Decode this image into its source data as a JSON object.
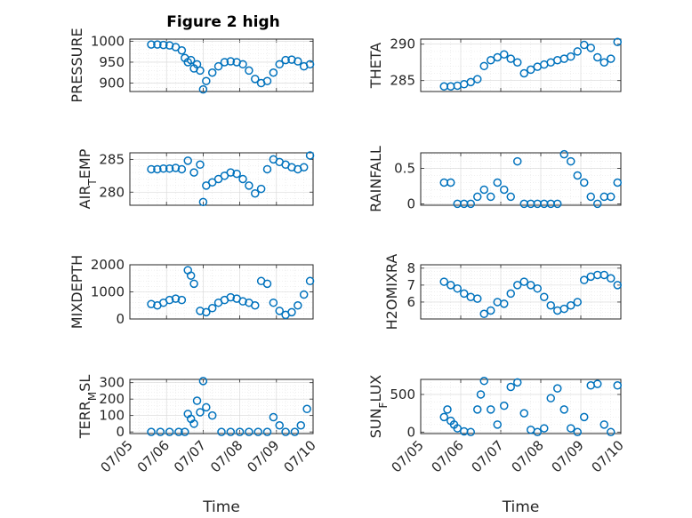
{
  "figure": {
    "title": "Figure 2 high"
  },
  "colors": {
    "marker": "#0072BD",
    "axis": "#262626",
    "grid": "#d6d6d6"
  },
  "chart_data": [
    {
      "type": "scatter",
      "ylabel": "PRESSURE",
      "ylabel_sub": "",
      "ylabel_tail": "",
      "xlabel": "",
      "ylim": [
        880,
        1005
      ],
      "yticks": [
        900,
        950,
        1000
      ],
      "grid": true,
      "x": [
        "07/05 14:00",
        "07/05 18:00",
        "07/05 22:00",
        "07/06 02:00",
        "07/06 06:00",
        "07/06 10:00",
        "07/06 12:00",
        "07/06 14:00",
        "07/06 16:00",
        "07/06 18:00",
        "07/06 20:00",
        "07/06 22:00",
        "07/07 00:00",
        "07/07 02:00",
        "07/07 06:00",
        "07/07 10:00",
        "07/07 14:00",
        "07/07 18:00",
        "07/07 22:00",
        "07/08 02:00",
        "07/08 06:00",
        "07/08 10:00",
        "07/08 14:00",
        "07/08 18:00",
        "07/08 22:00",
        "07/09 02:00",
        "07/09 06:00",
        "07/09 10:00",
        "07/09 14:00",
        "07/09 18:00",
        "07/09 22:00"
      ],
      "y": [
        992,
        992,
        991,
        990,
        986,
        978,
        960,
        950,
        955,
        935,
        945,
        930,
        885,
        905,
        925,
        940,
        950,
        952,
        950,
        945,
        930,
        910,
        900,
        905,
        925,
        945,
        955,
        956,
        952,
        940,
        945
      ]
    },
    {
      "type": "scatter",
      "ylabel": "THETA",
      "ylabel_sub": "",
      "ylabel_tail": "",
      "xlabel": "",
      "ylim": [
        283.5,
        290.7
      ],
      "yticks": [
        285,
        290
      ],
      "grid": true,
      "x": [
        "07/05 14:00",
        "07/05 18:00",
        "07/05 22:00",
        "07/06 02:00",
        "07/06 06:00",
        "07/06 10:00",
        "07/06 14:00",
        "07/06 18:00",
        "07/06 22:00",
        "07/07 02:00",
        "07/07 06:00",
        "07/07 10:00",
        "07/07 14:00",
        "07/07 18:00",
        "07/07 22:00",
        "07/08 02:00",
        "07/08 06:00",
        "07/08 10:00",
        "07/08 14:00",
        "07/08 18:00",
        "07/08 22:00",
        "07/09 02:00",
        "07/09 06:00",
        "07/09 10:00",
        "07/09 14:00",
        "07/09 18:00",
        "07/09 22:00"
      ],
      "y": [
        284.2,
        284.2,
        284.3,
        284.5,
        284.8,
        285.2,
        287.0,
        287.8,
        288.2,
        288.6,
        288.0,
        287.5,
        286.0,
        286.5,
        286.9,
        287.2,
        287.5,
        287.8,
        288.0,
        288.3,
        289.0,
        289.9,
        289.5,
        288.2,
        287.5,
        288.0,
        290.3
      ]
    },
    {
      "type": "scatter",
      "ylabel": "AIR",
      "ylabel_sub": "T",
      "ylabel_tail": "EMP",
      "xlabel": "",
      "ylim": [
        278,
        286
      ],
      "yticks": [
        280,
        285
      ],
      "grid": true,
      "x": [
        "07/05 14:00",
        "07/05 18:00",
        "07/05 22:00",
        "07/06 02:00",
        "07/06 06:00",
        "07/06 10:00",
        "07/06 14:00",
        "07/06 18:00",
        "07/06 22:00",
        "07/07 00:00",
        "07/07 02:00",
        "07/07 06:00",
        "07/07 10:00",
        "07/07 14:00",
        "07/07 18:00",
        "07/07 22:00",
        "07/08 02:00",
        "07/08 06:00",
        "07/08 10:00",
        "07/08 14:00",
        "07/08 18:00",
        "07/08 22:00",
        "07/09 02:00",
        "07/09 06:00",
        "07/09 10:00",
        "07/09 14:00",
        "07/09 18:00",
        "07/09 22:00"
      ],
      "y": [
        283.5,
        283.5,
        283.6,
        283.6,
        283.7,
        283.5,
        284.8,
        283.0,
        284.2,
        278.5,
        281.0,
        281.5,
        282.0,
        282.5,
        283.0,
        282.8,
        282.0,
        281.0,
        279.8,
        280.5,
        283.5,
        285.0,
        284.6,
        284.2,
        283.8,
        283.5,
        283.8,
        285.6
      ]
    },
    {
      "type": "scatter",
      "ylabel": "RAINFALL",
      "ylabel_sub": "",
      "ylabel_tail": "",
      "xlabel": "",
      "ylim": [
        -0.02,
        0.72
      ],
      "yticks": [
        0,
        0.5
      ],
      "grid": true,
      "x": [
        "07/05 14:00",
        "07/05 18:00",
        "07/05 22:00",
        "07/06 02:00",
        "07/06 06:00",
        "07/06 10:00",
        "07/06 14:00",
        "07/06 18:00",
        "07/06 22:00",
        "07/07 02:00",
        "07/07 06:00",
        "07/07 10:00",
        "07/07 14:00",
        "07/07 18:00",
        "07/07 22:00",
        "07/08 02:00",
        "07/08 06:00",
        "07/08 10:00",
        "07/08 14:00",
        "07/08 18:00",
        "07/08 22:00",
        "07/09 02:00",
        "07/09 06:00",
        "07/09 10:00",
        "07/09 14:00",
        "07/09 18:00",
        "07/09 22:00"
      ],
      "y": [
        0.3,
        0.3,
        0,
        0,
        0,
        0.1,
        0.2,
        0.1,
        0.3,
        0.2,
        0.1,
        0.6,
        0,
        0,
        0,
        0,
        0,
        0,
        0.7,
        0.6,
        0.4,
        0.3,
        0.1,
        0,
        0.1,
        0.1,
        0.3
      ]
    },
    {
      "type": "scatter",
      "ylabel": "MIXDEPTH",
      "ylabel_sub": "",
      "ylabel_tail": "",
      "xlabel": "",
      "ylim": [
        0,
        2000
      ],
      "yticks": [
        0,
        1000,
        2000
      ],
      "grid": true,
      "x": [
        "07/05 14:00",
        "07/05 18:00",
        "07/05 22:00",
        "07/06 02:00",
        "07/06 06:00",
        "07/06 10:00",
        "07/06 14:00",
        "07/06 16:00",
        "07/06 18:00",
        "07/06 22:00",
        "07/07 02:00",
        "07/07 06:00",
        "07/07 10:00",
        "07/07 14:00",
        "07/07 18:00",
        "07/07 22:00",
        "07/08 02:00",
        "07/08 06:00",
        "07/08 10:00",
        "07/08 14:00",
        "07/08 18:00",
        "07/08 22:00",
        "07/09 02:00",
        "07/09 06:00",
        "07/09 10:00",
        "07/09 14:00",
        "07/09 18:00",
        "07/09 22:00"
      ],
      "y": [
        550,
        500,
        600,
        700,
        750,
        700,
        1800,
        1600,
        1300,
        300,
        250,
        400,
        600,
        700,
        800,
        750,
        650,
        600,
        500,
        1400,
        1300,
        600,
        300,
        150,
        250,
        500,
        900,
        1400
      ]
    },
    {
      "type": "scatter",
      "ylabel": "H2OMIXRA",
      "ylabel_sub": "",
      "ylabel_tail": "",
      "xlabel": "",
      "ylim": [
        5,
        8.2
      ],
      "yticks": [
        6,
        7,
        8
      ],
      "grid": true,
      "x": [
        "07/05 14:00",
        "07/05 18:00",
        "07/05 22:00",
        "07/06 02:00",
        "07/06 06:00",
        "07/06 10:00",
        "07/06 14:00",
        "07/06 18:00",
        "07/06 22:00",
        "07/07 02:00",
        "07/07 06:00",
        "07/07 10:00",
        "07/07 14:00",
        "07/07 18:00",
        "07/07 22:00",
        "07/08 02:00",
        "07/08 06:00",
        "07/08 10:00",
        "07/08 14:00",
        "07/08 18:00",
        "07/08 22:00",
        "07/09 02:00",
        "07/09 06:00",
        "07/09 10:00",
        "07/09 14:00",
        "07/09 18:00",
        "07/09 22:00"
      ],
      "y": [
        7.2,
        7.0,
        6.8,
        6.5,
        6.3,
        6.2,
        5.3,
        5.5,
        6.0,
        5.9,
        6.5,
        7.0,
        7.2,
        7.0,
        6.8,
        6.3,
        5.8,
        5.5,
        5.6,
        5.8,
        6.0,
        7.3,
        7.5,
        7.6,
        7.6,
        7.4,
        7.0
      ]
    },
    {
      "type": "scatter",
      "ylabel": "TERR",
      "ylabel_sub": "M",
      "ylabel_tail": "SL",
      "xlabel": "Time",
      "ylim": [
        -10,
        320
      ],
      "yticks": [
        0,
        100,
        200,
        300
      ],
      "grid": true,
      "x": [
        "07/05 14:00",
        "07/05 20:00",
        "07/06 02:00",
        "07/06 08:00",
        "07/06 12:00",
        "07/06 14:00",
        "07/06 16:00",
        "07/06 18:00",
        "07/06 20:00",
        "07/06 22:00",
        "07/07 00:00",
        "07/07 02:00",
        "07/07 06:00",
        "07/07 12:00",
        "07/07 18:00",
        "07/08 00:00",
        "07/08 06:00",
        "07/08 12:00",
        "07/08 18:00",
        "07/08 22:00",
        "07/09 02:00",
        "07/09 06:00",
        "07/09 12:00",
        "07/09 16:00",
        "07/09 20:00"
      ],
      "y": [
        0,
        0,
        0,
        0,
        0,
        110,
        80,
        50,
        190,
        120,
        310,
        150,
        100,
        0,
        0,
        0,
        0,
        0,
        0,
        90,
        40,
        0,
        0,
        40,
        140
      ]
    },
    {
      "type": "scatter",
      "ylabel": "SUN",
      "ylabel_sub": "F",
      "ylabel_tail": "LUX",
      "xlabel": "Time",
      "ylim": [
        -20,
        700
      ],
      "yticks": [
        0,
        500
      ],
      "grid": true,
      "x": [
        "07/05 14:00",
        "07/05 16:00",
        "07/05 18:00",
        "07/05 20:00",
        "07/05 22:00",
        "07/06 02:00",
        "07/06 06:00",
        "07/06 10:00",
        "07/06 12:00",
        "07/06 14:00",
        "07/06 18:00",
        "07/06 22:00",
        "07/07 02:00",
        "07/07 06:00",
        "07/07 10:00",
        "07/07 14:00",
        "07/07 18:00",
        "07/07 22:00",
        "07/08 02:00",
        "07/08 06:00",
        "07/08 10:00",
        "07/08 14:00",
        "07/08 18:00",
        "07/08 22:00",
        "07/09 02:00",
        "07/09 06:00",
        "07/09 10:00",
        "07/09 14:00",
        "07/09 18:00",
        "07/09 22:00"
      ],
      "y": [
        200,
        300,
        150,
        100,
        50,
        10,
        0,
        300,
        500,
        680,
        300,
        100,
        350,
        600,
        660,
        250,
        30,
        0,
        50,
        450,
        580,
        300,
        50,
        0,
        200,
        620,
        640,
        100,
        0,
        620
      ]
    }
  ],
  "x_axis": {
    "ticks": [
      "07/05",
      "07/06",
      "07/07",
      "07/08",
      "07/09",
      "07/10"
    ],
    "label": "Time"
  }
}
